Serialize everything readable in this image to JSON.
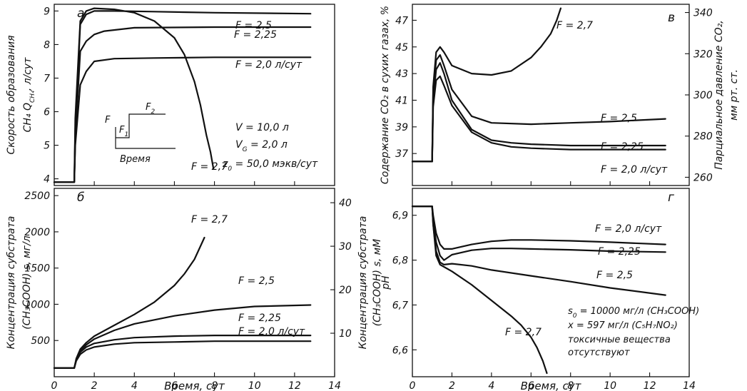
{
  "colors": {
    "ink": "#111111",
    "background": "#ffffff"
  },
  "chart_data": [
    {
      "id": "a",
      "type": "line",
      "panel_letter": "a",
      "ylabel_line1": "Скорость образования",
      "ylabel_line2": "CH₄ Q",
      "ylabel_sub": "CH₄",
      "ylabel_unit": ", л/сут",
      "xlim": [
        0,
        14
      ],
      "ylim": [
        3.8,
        9.2
      ],
      "ytick_labels": [
        "4",
        "5",
        "6",
        "7",
        "8",
        "9"
      ],
      "yticks": [
        4,
        5,
        6,
        7,
        8,
        9
      ],
      "series": [
        {
          "name": "F = 2,5",
          "x": [
            0,
            1.0,
            1.05,
            1.3,
            1.6,
            2.0,
            3.0,
            5,
            8,
            12.8
          ],
          "y": [
            3.9,
            3.9,
            5.5,
            8.6,
            8.9,
            9.0,
            9.0,
            8.98,
            8.95,
            8.92
          ]
        },
        {
          "name": "F = 2,25",
          "x": [
            0,
            1.0,
            1.05,
            1.3,
            1.6,
            2.0,
            2.5,
            4,
            8,
            12.8
          ],
          "y": [
            3.9,
            3.9,
            5.2,
            7.8,
            8.1,
            8.3,
            8.4,
            8.5,
            8.52,
            8.52
          ]
        },
        {
          "name": "F = 2,0 л/сут",
          "x": [
            0,
            1.0,
            1.05,
            1.3,
            1.6,
            2.0,
            3.0,
            5,
            8,
            12.8
          ],
          "y": [
            3.9,
            3.9,
            5.0,
            6.8,
            7.2,
            7.5,
            7.58,
            7.6,
            7.62,
            7.62
          ]
        },
        {
          "name": "F = 2,7",
          "x": [
            0,
            1.0,
            1.05,
            1.3,
            1.6,
            2.0,
            3.0,
            4.0,
            5.0,
            6.0,
            6.5,
            7.0,
            7.3,
            7.6,
            7.8,
            7.95
          ],
          "y": [
            3.9,
            3.9,
            5.8,
            8.7,
            9.0,
            9.08,
            9.05,
            8.95,
            8.7,
            8.2,
            7.7,
            6.9,
            6.2,
            5.3,
            4.8,
            4.3
          ]
        }
      ],
      "annotations": [
        "V = 10,0 л",
        "V",
        "G",
        " = 2,0 л",
        "z",
        "0",
        " = 50,0 мэкв/сут"
      ],
      "inset": {
        "ylabel": "F",
        "xlabel": "Время",
        "label1": "F",
        "label1_sub": "1",
        "label2": "F",
        "label2_sub": "2"
      }
    },
    {
      "id": "b",
      "type": "line",
      "panel_letter": "б",
      "xlabel": "Время, сут",
      "ylabel_line1": "Концентрация субстрата",
      "ylabel_line2": "(CH₃COOH) s, мг/л",
      "ylabel_right_line1": "Концентрация субстрата",
      "ylabel_right_line2": "(CH₃COOH) s, мМ",
      "xlim": [
        0,
        14
      ],
      "ylim": [
        0,
        2600
      ],
      "xticks": [
        0,
        2,
        4,
        6,
        8,
        10,
        12,
        14
      ],
      "xtick_labels": [
        "0",
        "2",
        "4",
        "6",
        "8",
        "10",
        "12",
        "14"
      ],
      "yticks": [
        500,
        1000,
        1500,
        2000,
        2500
      ],
      "ytick_labels": [
        "500",
        "1000",
        "1500",
        "2000",
        "2500"
      ],
      "ylim_right": [
        0,
        43.3
      ],
      "yticks_right": [
        10,
        20,
        30,
        40
      ],
      "ytick_labels_right": [
        "10",
        "20",
        "30",
        "40"
      ],
      "series": [
        {
          "name": "F = 2,7",
          "x": [
            0,
            1.0,
            1.1,
            1.3,
            1.6,
            2.0,
            3.0,
            4.0,
            5.0,
            6.0,
            6.5,
            7.0,
            7.5
          ],
          "y": [
            120,
            120,
            250,
            380,
            470,
            560,
            710,
            860,
            1030,
            1260,
            1420,
            1620,
            1920
          ]
        },
        {
          "name": "F = 2,5",
          "x": [
            0,
            1.0,
            1.1,
            1.3,
            1.6,
            2.0,
            3.0,
            4.0,
            6.0,
            8.0,
            10.0,
            12.8
          ],
          "y": [
            120,
            120,
            240,
            360,
            440,
            520,
            640,
            730,
            840,
            920,
            970,
            990
          ]
        },
        {
          "name": "F = 2,25",
          "x": [
            0,
            1.0,
            1.1,
            1.3,
            1.6,
            2.0,
            3.0,
            4.0,
            6.0,
            8.0,
            12.8
          ],
          "y": [
            120,
            120,
            230,
            340,
            410,
            460,
            510,
            540,
            560,
            570,
            570
          ]
        },
        {
          "name": "F = 2,0 л/сут",
          "x": [
            0,
            1.0,
            1.1,
            1.3,
            1.6,
            2.0,
            3.0,
            4.0,
            6.0,
            8.0,
            12.8
          ],
          "y": [
            120,
            120,
            220,
            310,
            370,
            410,
            450,
            470,
            480,
            490,
            490
          ]
        }
      ]
    },
    {
      "id": "c",
      "type": "line",
      "panel_letter": "в",
      "ylabel_line1": "Содержание CO₂ в сухих газах, %",
      "ylabel_right_line1": "Парциальное давление CO₂,",
      "ylabel_right_line2": "мм рт. ст.",
      "xlim": [
        0,
        14
      ],
      "ylim": [
        34.6,
        48.2
      ],
      "yticks": [
        37,
        39,
        41,
        43,
        45,
        47
      ],
      "ytick_labels": [
        "37",
        "39",
        "41",
        "43",
        "45",
        "47"
      ],
      "ylim_right": [
        256,
        344
      ],
      "yticks_right": [
        260,
        280,
        300,
        320,
        340
      ],
      "ytick_labels_right": [
        "260",
        "280",
        "300",
        "320",
        "340"
      ],
      "series": [
        {
          "name": "F = 2,7",
          "x": [
            0,
            1.0,
            1.05,
            1.2,
            1.4,
            1.6,
            2.0,
            3.0,
            4.0,
            5.0,
            6.0,
            6.5,
            7.0,
            7.3,
            7.5
          ],
          "y": [
            36.4,
            36.4,
            42.0,
            44.6,
            45.0,
            44.6,
            43.6,
            43.0,
            42.9,
            43.2,
            44.2,
            45.0,
            46.0,
            47.0,
            47.9
          ]
        },
        {
          "name": "F = 2,5",
          "x": [
            0,
            1.0,
            1.05,
            1.2,
            1.4,
            1.6,
            2.0,
            3.0,
            4.0,
            6.0,
            8.0,
            10.0,
            12.8
          ],
          "y": [
            36.4,
            36.4,
            41.5,
            44.0,
            44.4,
            43.6,
            41.8,
            39.8,
            39.3,
            39.2,
            39.3,
            39.4,
            39.6
          ]
        },
        {
          "name": "F = 2,25",
          "x": [
            0,
            1.0,
            1.05,
            1.2,
            1.4,
            1.6,
            2.0,
            3.0,
            4.0,
            5.0,
            6.0,
            8.0,
            10.0,
            12.8
          ],
          "y": [
            36.4,
            36.4,
            41.0,
            43.3,
            43.8,
            43.0,
            41.0,
            38.8,
            38.0,
            37.8,
            37.7,
            37.6,
            37.6,
            37.6
          ]
        },
        {
          "name": "F = 2,0 л/сут",
          "x": [
            0,
            1.0,
            1.05,
            1.2,
            1.4,
            1.6,
            2.0,
            3.0,
            4.0,
            5.0,
            6.0,
            8.0,
            10.0,
            12.8
          ],
          "y": [
            36.4,
            36.4,
            40.5,
            42.5,
            42.8,
            42.1,
            40.6,
            38.6,
            37.8,
            37.5,
            37.4,
            37.3,
            37.3,
            37.3
          ]
        }
      ]
    },
    {
      "id": "d",
      "type": "line",
      "panel_letter": "г",
      "xlabel": "Время, сут",
      "ylabel_line1": "pH",
      "xlim": [
        0,
        14
      ],
      "ylim": [
        6.54,
        6.96
      ],
      "xticks": [
        0,
        2,
        4,
        6,
        8,
        10,
        12,
        14
      ],
      "xtick_labels": [
        "0",
        "2",
        "4",
        "6",
        "8",
        "10",
        "12",
        "14"
      ],
      "yticks": [
        6.6,
        6.7,
        6.8,
        6.9
      ],
      "ytick_labels": [
        "6,6",
        "6,7",
        "6,8",
        "6,9"
      ],
      "series": [
        {
          "name": "F = 2,0 л/сут",
          "x": [
            0,
            1.0,
            1.05,
            1.2,
            1.4,
            1.6,
            2.0,
            3.0,
            4.0,
            5.0,
            6.0,
            8.0,
            10.0,
            12.8
          ],
          "y": [
            6.92,
            6.92,
            6.9,
            6.86,
            6.835,
            6.825,
            6.825,
            6.835,
            6.842,
            6.845,
            6.845,
            6.843,
            6.84,
            6.835
          ]
        },
        {
          "name": "F = 2,25",
          "x": [
            0,
            1.0,
            1.05,
            1.2,
            1.4,
            1.6,
            2.0,
            3.0,
            4.0,
            5.0,
            6.0,
            8.0,
            10.0,
            12.8
          ],
          "y": [
            6.92,
            6.92,
            6.89,
            6.84,
            6.81,
            6.8,
            6.812,
            6.822,
            6.826,
            6.826,
            6.825,
            6.823,
            6.82,
            6.818
          ]
        },
        {
          "name": "F = 2,5",
          "x": [
            0,
            1.0,
            1.05,
            1.2,
            1.4,
            1.6,
            2.0,
            3.0,
            4.0,
            6.0,
            8.0,
            10.0,
            12.8
          ],
          "y": [
            6.92,
            6.92,
            6.88,
            6.82,
            6.795,
            6.79,
            6.792,
            6.787,
            6.778,
            6.765,
            6.752,
            6.738,
            6.722
          ]
        },
        {
          "name": "F = 2,7",
          "x": [
            0,
            1.0,
            1.05,
            1.2,
            1.4,
            1.6,
            2.0,
            3.0,
            4.0,
            5.0,
            5.5,
            6.0,
            6.3,
            6.6,
            6.8
          ],
          "y": [
            6.92,
            6.92,
            6.88,
            6.81,
            6.79,
            6.785,
            6.775,
            6.745,
            6.71,
            6.675,
            6.655,
            6.628,
            6.605,
            6.575,
            6.548
          ]
        }
      ],
      "annotations": [
        "s",
        "0",
        " = 10000 мг/л (CH₃COOH)",
        "x = 597 мг/л (C₅H₇NO₂)",
        "токсичные вещества",
        "отсутствуют"
      ]
    }
  ]
}
